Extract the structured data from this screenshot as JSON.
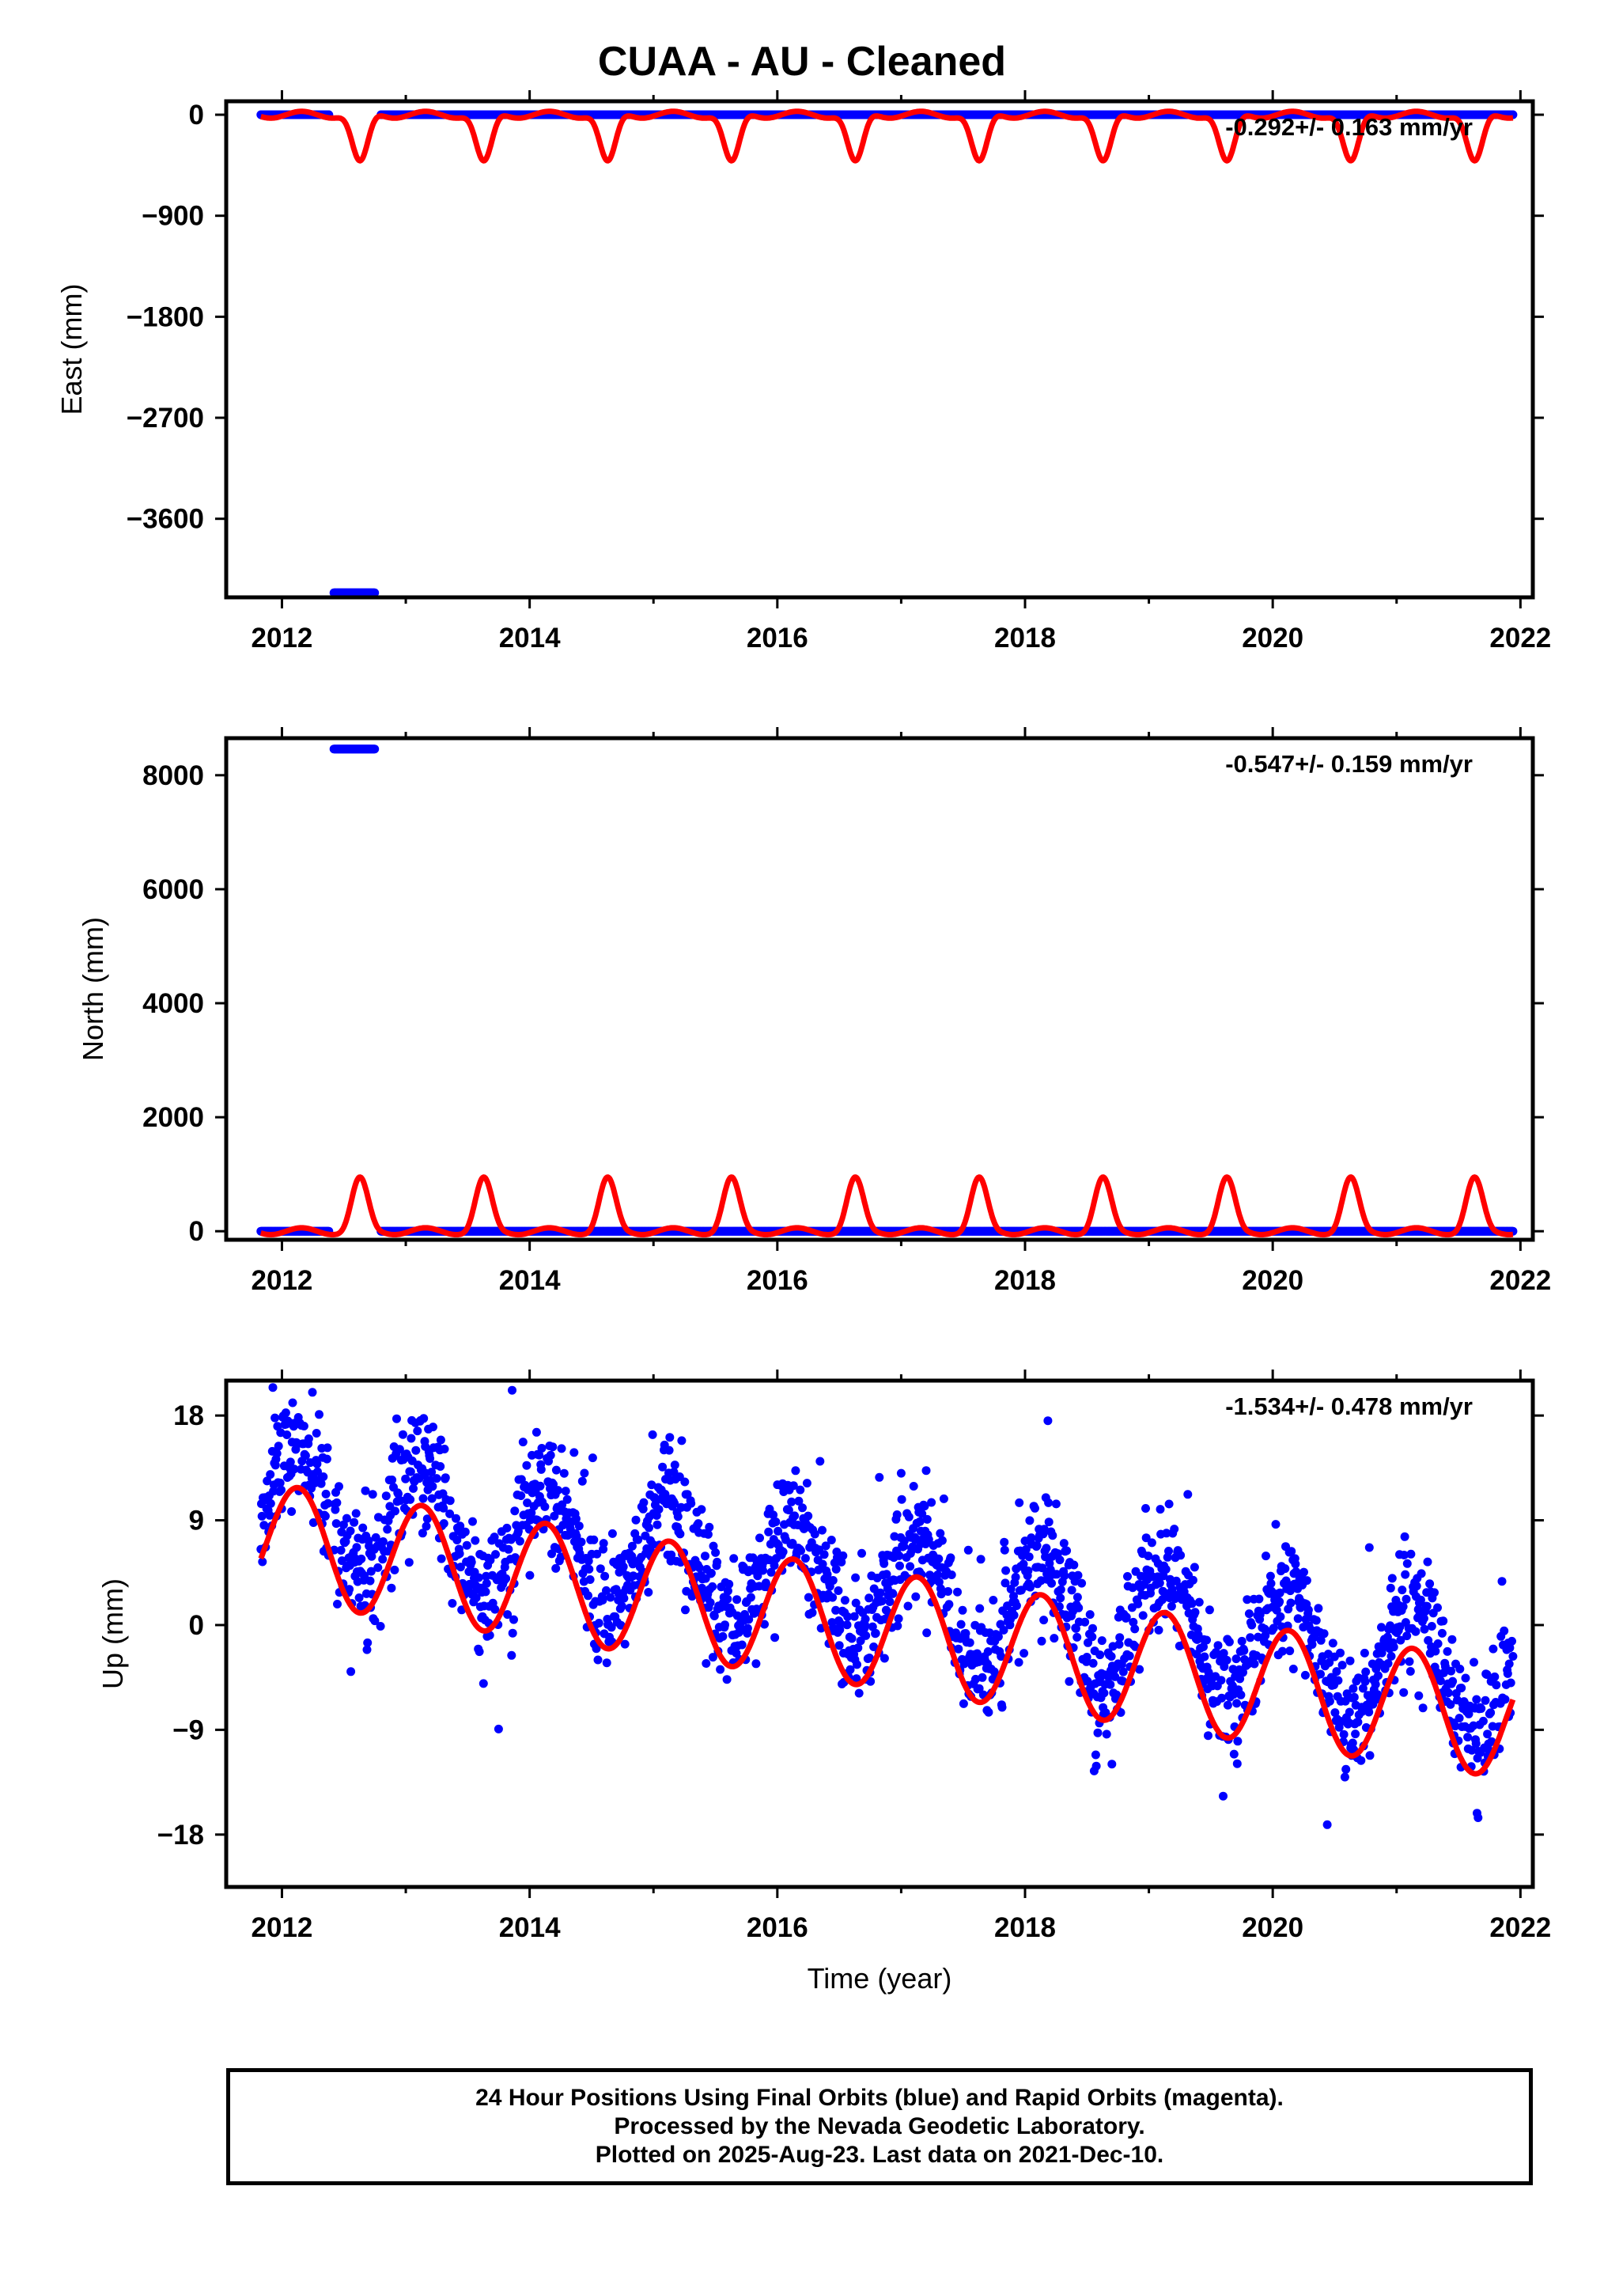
{
  "title": "CUAA  - AU - Cleaned",
  "footer": {
    "lines": [
      "24 Hour Positions Using Final Orbits (blue) and Rapid Orbits (magenta).",
      "Processed by the Nevada Geodetic Laboratory.",
      "Plotted on 2025-Aug-23. Last data on 2021-Dec-10."
    ]
  },
  "colors": {
    "data": "#0000ff",
    "model": "#ff0000",
    "frame": "#000000"
  },
  "chart_data": [
    {
      "type": "scatter",
      "ylabel": "East (mm)",
      "xlabel": "",
      "rate_label": "-0.292+/- 0.163 mm/yr",
      "xlim": [
        2011.55,
        2022.1
      ],
      "ylim": [
        -4300,
        120
      ],
      "xticks": [
        2012,
        2014,
        2016,
        2018,
        2020,
        2022
      ],
      "yticks": [
        0,
        -900,
        -1800,
        -2700,
        -3600
      ],
      "grid": false,
      "series": [
        {
          "kind": "points",
          "segments": [
            {
              "x_start": 2011.83,
              "x_end": 2012.38,
              "y": 0
            },
            {
              "x_start": 2012.42,
              "x_end": 2012.75,
              "y": -4260
            },
            {
              "x_start": 2012.8,
              "x_end": 2021.94,
              "y": 0
            }
          ]
        },
        {
          "kind": "model",
          "x_start": 2011.83,
          "x_end": 2021.94,
          "baseline": 0,
          "small_amplitude": 30,
          "dip_depth": -410,
          "dip_years": [
            2012.63,
            2013.63,
            2014.63,
            2015.63,
            2016.63,
            2017.63,
            2018.63,
            2019.63,
            2020.63,
            2021.63
          ]
        }
      ]
    },
    {
      "type": "scatter",
      "ylabel": "North (mm)",
      "xlabel": "",
      "rate_label": "-0.547+/- 0.159 mm/yr",
      "xlim": [
        2011.55,
        2022.1
      ],
      "ylim": [
        -150,
        8650
      ],
      "xticks": [
        2012,
        2014,
        2016,
        2018,
        2020,
        2022
      ],
      "yticks": [
        0,
        2000,
        4000,
        6000,
        8000
      ],
      "grid": false,
      "series": [
        {
          "kind": "points",
          "segments": [
            {
              "x_start": 2011.83,
              "x_end": 2012.38,
              "y": 0
            },
            {
              "x_start": 2012.42,
              "x_end": 2012.75,
              "y": 8460
            },
            {
              "x_start": 2012.8,
              "x_end": 2021.94,
              "y": 0
            }
          ]
        },
        {
          "kind": "model",
          "x_start": 2011.83,
          "x_end": 2021.94,
          "baseline": 0,
          "small_amplitude": 60,
          "peak_height": 950,
          "peak_years": [
            2012.63,
            2013.63,
            2014.63,
            2015.63,
            2016.63,
            2017.63,
            2018.63,
            2019.63,
            2020.63,
            2021.63
          ]
        }
      ]
    },
    {
      "type": "scatter",
      "ylabel": "Up (mm)",
      "xlabel": "Time (year)",
      "rate_label": "-1.534+/- 0.478 mm/yr",
      "xlim": [
        2011.55,
        2022.1
      ],
      "ylim": [
        -22.5,
        21
      ],
      "xticks": [
        2012,
        2014,
        2016,
        2018,
        2020,
        2022
      ],
      "yticks": [
        18,
        9,
        0,
        -9,
        -18
      ],
      "grid": false,
      "series": [
        {
          "kind": "points",
          "x_start": 2011.83,
          "x_end": 2021.94,
          "gap": [
            2012.38,
            2012.42
          ],
          "offset_2012": 10.5,
          "trend_mm_per_yr": -1.534,
          "annual_amplitude": 5.0,
          "annual_peak_phase": 2012.13,
          "scatter_sd": 2.6
        },
        {
          "kind": "model",
          "x_start": 2011.83,
          "x_end": 2021.94,
          "offset_2012": 7.0,
          "trend_mm_per_yr": -1.534,
          "annual_amplitude": 5.0,
          "annual_peak_phase": 2012.13
        }
      ]
    }
  ]
}
